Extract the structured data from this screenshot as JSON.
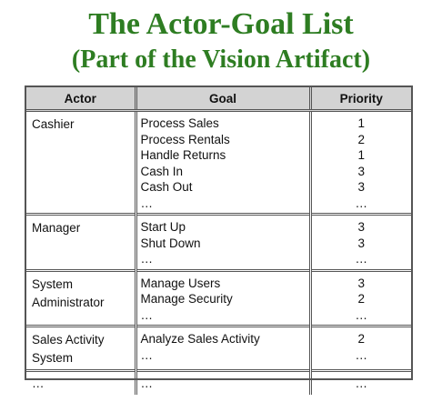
{
  "title": "The Actor-Goal List",
  "subtitle": "(Part of the Vision Artifact)",
  "table": {
    "headers": {
      "actor": "Actor",
      "goal": "Goal",
      "priority": "Priority"
    },
    "rows": [
      {
        "actor": [
          "Cashier"
        ],
        "goals": [
          "Process Sales",
          "Process Rentals",
          "Handle Returns",
          "Cash In",
          "Cash Out",
          "…"
        ],
        "priorities": [
          "1",
          "2",
          "1",
          "3",
          "3",
          "…"
        ]
      },
      {
        "actor": [
          "Manager"
        ],
        "goals": [
          "Start Up",
          "Shut Down",
          "…"
        ],
        "priorities": [
          "3",
          "3",
          "…"
        ]
      },
      {
        "actor": [
          "System",
          "Administrator"
        ],
        "goals": [
          "Manage Users",
          "Manage Security",
          "…"
        ],
        "priorities": [
          "3",
          "2",
          "…"
        ]
      },
      {
        "actor": [
          "Sales Activity",
          "System"
        ],
        "goals": [
          "Analyze Sales Activity",
          "…"
        ],
        "priorities": [
          "2",
          "…"
        ]
      },
      {
        "actor": [
          "…"
        ],
        "goals": [
          "…"
        ],
        "priorities": [
          "…"
        ]
      }
    ]
  }
}
